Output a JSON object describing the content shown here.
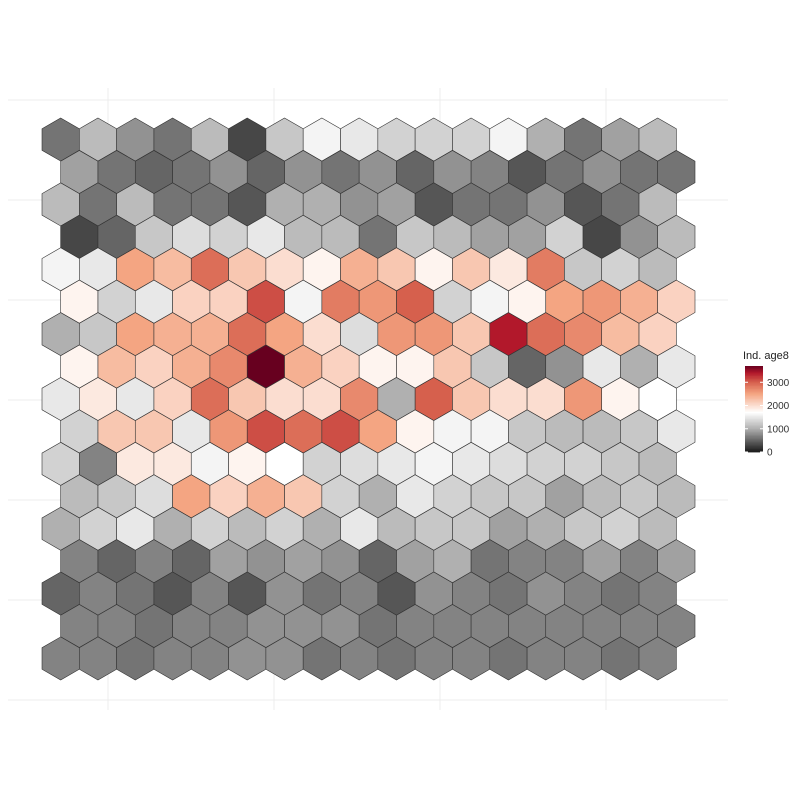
{
  "chart_data": {
    "type": "heatmap",
    "layout": "hexagonal",
    "title": "",
    "xlabel": "",
    "ylabel": "",
    "legend": {
      "title": "Ind. age8",
      "ticks": [
        0,
        1000,
        2000,
        3000
      ],
      "tick_labels": [
        "0",
        "1000",
        "2000",
        "3000"
      ],
      "range": [
        0,
        3700
      ],
      "placement": "right"
    },
    "color_scale": {
      "type": "diverging",
      "stops": [
        {
          "value": 0,
          "color": "#1a1a1a"
        },
        {
          "value": 1000,
          "color": "#b0b0b0"
        },
        {
          "value": 1700,
          "color": "#ffffff"
        },
        {
          "value": 2500,
          "color": "#f4a582"
        },
        {
          "value": 3000,
          "color": "#d6604d"
        },
        {
          "value": 3400,
          "color": "#b2182b"
        },
        {
          "value": 3700,
          "color": "#67001f"
        }
      ]
    },
    "grid": true,
    "rows": 17,
    "cols": 17,
    "values": [
      [
        600,
        1100,
        800,
        600,
        1100,
        300,
        1200,
        1600,
        1500,
        1300,
        1300,
        1300,
        1600,
        1000,
        600,
        900,
        1100
      ],
      [
        900,
        600,
        500,
        600,
        800,
        500,
        800,
        600,
        800,
        500,
        800,
        700,
        400,
        600,
        800,
        600,
        600
      ],
      [
        1100,
        600,
        1100,
        600,
        600,
        400,
        1000,
        1000,
        800,
        900,
        400,
        600,
        600,
        800,
        400,
        600,
        1100
      ],
      [
        300,
        500,
        1200,
        1400,
        1300,
        1500,
        1100,
        1100,
        600,
        1200,
        1100,
        900,
        900,
        1300,
        300,
        800,
        1100
      ],
      [
        1600,
        1500,
        2500,
        2300,
        2900,
        2200,
        2000,
        1800,
        2400,
        2200,
        1800,
        2200,
        1900,
        2800,
        1200,
        1300,
        1100
      ],
      [
        1800,
        1300,
        1500,
        2100,
        2100,
        3100,
        1600,
        2800,
        2600,
        3000,
        1300,
        1600,
        1800,
        2500,
        2600,
        2400,
        2100
      ],
      [
        1000,
        1200,
        2500,
        2400,
        2400,
        2900,
        2500,
        2000,
        1400,
        2600,
        2600,
        2200,
        3400,
        2900,
        2700,
        2300,
        2100
      ],
      [
        1800,
        2300,
        2100,
        2400,
        2700,
        3700,
        2400,
        2100,
        1800,
        1800,
        2200,
        1200,
        500,
        800,
        1500,
        1000,
        1500
      ],
      [
        1500,
        1900,
        1500,
        2100,
        2900,
        2200,
        2000,
        2000,
        2700,
        1000,
        3000,
        2200,
        2000,
        2000,
        2600,
        1800,
        1700
      ],
      [
        1300,
        2200,
        2200,
        1500,
        2600,
        3100,
        2900,
        3100,
        2500,
        1800,
        1600,
        1600,
        1200,
        1100,
        1100,
        1200,
        1500
      ],
      [
        1300,
        700,
        1900,
        1900,
        1600,
        1800,
        1700,
        1300,
        1400,
        1500,
        1600,
        1500,
        1400,
        1300,
        1300,
        1200,
        1100
      ],
      [
        1100,
        1200,
        1400,
        2500,
        2100,
        2400,
        2200,
        1300,
        1000,
        1500,
        1300,
        1200,
        1200,
        900,
        1100,
        1200,
        1100
      ],
      [
        1000,
        1300,
        1500,
        1000,
        1300,
        1100,
        1300,
        1000,
        1500,
        1100,
        1200,
        1200,
        900,
        1000,
        1200,
        1300,
        1100
      ],
      [
        700,
        500,
        700,
        500,
        900,
        800,
        900,
        800,
        500,
        900,
        1000,
        600,
        700,
        700,
        900,
        700,
        900
      ],
      [
        500,
        700,
        600,
        400,
        700,
        400,
        800,
        600,
        700,
        400,
        800,
        700,
        600,
        800,
        700,
        600,
        700
      ],
      [
        700,
        700,
        600,
        700,
        700,
        800,
        800,
        800,
        600,
        700,
        700,
        700,
        700,
        700,
        700,
        700,
        700
      ],
      [
        700,
        700,
        600,
        700,
        700,
        800,
        800,
        600,
        700,
        600,
        700,
        700,
        600,
        700,
        700,
        600,
        700
      ]
    ]
  }
}
